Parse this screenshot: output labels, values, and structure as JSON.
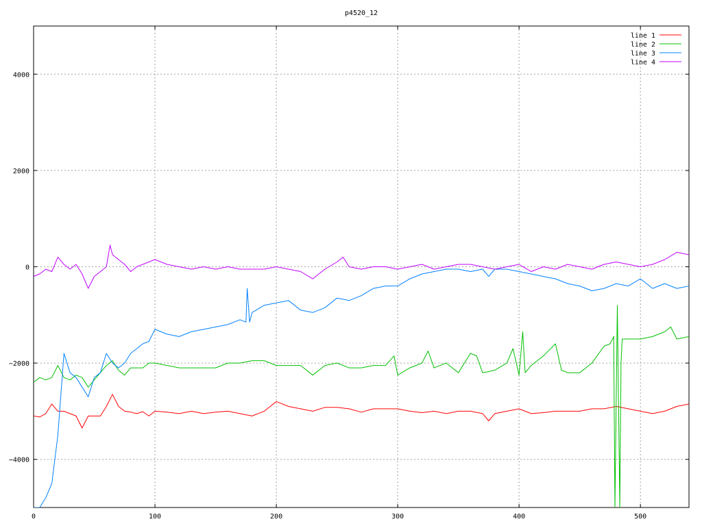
{
  "chart_data": {
    "type": "line",
    "title": "p4520_12",
    "xlabel": "",
    "ylabel": "",
    "xlim": [
      0,
      540
    ],
    "ylim": [
      -5000,
      5000
    ],
    "xticks": [
      0,
      100,
      200,
      300,
      400,
      500
    ],
    "yticks": [
      -4000,
      -2000,
      0,
      2000,
      4000
    ],
    "grid": true,
    "legend_position": "top-right",
    "series": [
      {
        "name": "line 1",
        "color": "#ff0000",
        "x": [
          0,
          5,
          10,
          15,
          20,
          25,
          30,
          35,
          40,
          45,
          50,
          55,
          60,
          65,
          70,
          75,
          80,
          85,
          90,
          95,
          100,
          110,
          120,
          130,
          140,
          150,
          160,
          170,
          180,
          190,
          200,
          210,
          220,
          230,
          240,
          250,
          260,
          270,
          280,
          290,
          300,
          310,
          320,
          330,
          340,
          350,
          360,
          370,
          375,
          380,
          390,
          400,
          410,
          420,
          430,
          440,
          450,
          460,
          470,
          480,
          490,
          500,
          510,
          520,
          530,
          540
        ],
        "values": [
          -3100,
          -3120,
          -3050,
          -2850,
          -3000,
          -3000,
          -3050,
          -3100,
          -3350,
          -3100,
          -3100,
          -3100,
          -2900,
          -2650,
          -2900,
          -3000,
          -3020,
          -3050,
          -3010,
          -3100,
          -3000,
          -3020,
          -3050,
          -3000,
          -3050,
          -3020,
          -3000,
          -3050,
          -3100,
          -3000,
          -2800,
          -2900,
          -2950,
          -3000,
          -2920,
          -2920,
          -2950,
          -3020,
          -2950,
          -2950,
          -2950,
          -3000,
          -3030,
          -3000,
          -3050,
          -3000,
          -3000,
          -3050,
          -3200,
          -3050,
          -3000,
          -2950,
          -3050,
          -3030,
          -3000,
          -3000,
          -3000,
          -2950,
          -2950,
          -2900,
          -2950,
          -3000,
          -3050,
          -3000,
          -2900,
          -2850
        ]
      },
      {
        "name": "line 2",
        "color": "#00c000",
        "x": [
          0,
          5,
          10,
          15,
          20,
          25,
          30,
          35,
          40,
          45,
          50,
          55,
          60,
          65,
          70,
          75,
          80,
          85,
          90,
          95,
          100,
          110,
          120,
          130,
          140,
          150,
          160,
          170,
          180,
          190,
          200,
          210,
          220,
          230,
          240,
          250,
          260,
          270,
          280,
          290,
          297,
          300,
          310,
          320,
          325,
          330,
          340,
          350,
          360,
          365,
          370,
          380,
          390,
          395,
          400,
          403,
          405,
          410,
          420,
          430,
          435,
          440,
          450,
          460,
          470,
          475,
          478,
          479,
          481,
          483,
          484,
          485,
          490,
          500,
          510,
          520,
          525,
          530,
          540
        ],
        "values": [
          -2400,
          -2300,
          -2350,
          -2300,
          -2050,
          -2300,
          -2350,
          -2250,
          -2300,
          -2500,
          -2350,
          -2200,
          -2050,
          -1950,
          -2150,
          -2250,
          -2100,
          -2100,
          -2100,
          -2000,
          -2000,
          -2050,
          -2100,
          -2100,
          -2100,
          -2100,
          -2000,
          -2000,
          -1950,
          -1950,
          -2050,
          -2050,
          -2050,
          -2250,
          -2050,
          -2000,
          -2100,
          -2100,
          -2050,
          -2050,
          -1850,
          -2250,
          -2100,
          -2000,
          -1750,
          -2100,
          -2000,
          -2200,
          -1800,
          -1850,
          -2200,
          -2150,
          -2000,
          -1700,
          -2250,
          -1350,
          -2200,
          -2050,
          -1850,
          -1600,
          -2150,
          -2200,
          -2200,
          -2000,
          -1650,
          -1600,
          -1450,
          -5000,
          -800,
          -5000,
          -2000,
          -1500,
          -1500,
          -1500,
          -1450,
          -1350,
          -1250,
          -1500,
          -1450
        ]
      },
      {
        "name": "line 3",
        "color": "#0080ff",
        "x": [
          0,
          5,
          10,
          15,
          20,
          25,
          30,
          35,
          40,
          45,
          50,
          55,
          60,
          65,
          70,
          75,
          80,
          85,
          90,
          95,
          100,
          110,
          120,
          130,
          140,
          150,
          160,
          170,
          175,
          176,
          178,
          180,
          190,
          200,
          210,
          220,
          230,
          240,
          250,
          260,
          270,
          280,
          290,
          300,
          310,
          320,
          330,
          340,
          350,
          360,
          370,
          375,
          380,
          390,
          400,
          410,
          420,
          430,
          440,
          450,
          460,
          470,
          480,
          490,
          500,
          510,
          520,
          530,
          540
        ],
        "values": [
          -5000,
          -5000,
          -4800,
          -4500,
          -3500,
          -1800,
          -2200,
          -2300,
          -2500,
          -2700,
          -2300,
          -2200,
          -1800,
          -2000,
          -2100,
          -2000,
          -1800,
          -1700,
          -1600,
          -1550,
          -1300,
          -1400,
          -1450,
          -1350,
          -1300,
          -1250,
          -1200,
          -1100,
          -1150,
          -450,
          -1150,
          -950,
          -800,
          -750,
          -700,
          -900,
          -950,
          -850,
          -650,
          -700,
          -600,
          -450,
          -400,
          -400,
          -250,
          -150,
          -100,
          -50,
          -50,
          -100,
          -50,
          -200,
          -50,
          -50,
          -100,
          -150,
          -200,
          -250,
          -350,
          -400,
          -500,
          -450,
          -350,
          -400,
          -250,
          -450,
          -350,
          -450,
          -400
        ]
      },
      {
        "name": "line 4",
        "color": "#c000ff",
        "x": [
          0,
          5,
          10,
          15,
          20,
          25,
          30,
          35,
          40,
          45,
          50,
          55,
          60,
          63,
          65,
          70,
          75,
          80,
          85,
          90,
          95,
          100,
          110,
          120,
          130,
          140,
          150,
          160,
          170,
          180,
          190,
          200,
          210,
          220,
          230,
          240,
          250,
          255,
          260,
          270,
          280,
          290,
          300,
          310,
          320,
          330,
          340,
          350,
          360,
          370,
          380,
          390,
          400,
          410,
          420,
          430,
          440,
          450,
          460,
          470,
          480,
          490,
          500,
          510,
          520,
          530,
          540
        ],
        "values": [
          -200,
          -150,
          -50,
          -100,
          200,
          50,
          -50,
          50,
          -150,
          -450,
          -200,
          -100,
          0,
          450,
          250,
          150,
          50,
          -100,
          0,
          50,
          100,
          150,
          50,
          0,
          -50,
          0,
          -50,
          0,
          -50,
          -50,
          -50,
          0,
          -50,
          -100,
          -250,
          -50,
          100,
          200,
          0,
          -50,
          0,
          0,
          -50,
          0,
          50,
          -50,
          0,
          50,
          50,
          0,
          -50,
          0,
          50,
          -100,
          0,
          -50,
          50,
          0,
          -50,
          50,
          100,
          50,
          0,
          50,
          150,
          300,
          250
        ]
      }
    ]
  }
}
